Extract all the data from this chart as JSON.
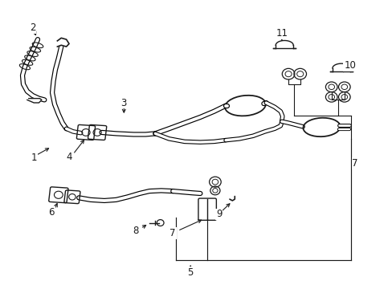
{
  "background_color": "#ffffff",
  "line_color": "#1a1a1a",
  "figsize": [
    4.89,
    3.6
  ],
  "dpi": 100,
  "labels": {
    "1": [
      0.085,
      0.47,
      0.115,
      0.505
    ],
    "2": [
      0.085,
      0.905,
      0.105,
      0.875
    ],
    "3": [
      0.315,
      0.635,
      0.305,
      0.605
    ],
    "4": [
      0.175,
      0.47,
      0.195,
      0.505
    ],
    "5": [
      0.485,
      0.055,
      0.485,
      0.09
    ],
    "6": [
      0.135,
      0.27,
      0.155,
      0.305
    ],
    "7a": [
      0.435,
      0.195,
      0.455,
      0.245
    ],
    "7b": [
      0.895,
      0.44,
      null,
      null
    ],
    "8": [
      0.345,
      0.205,
      0.375,
      0.225
    ],
    "9": [
      0.555,
      0.27,
      0.545,
      0.3
    ],
    "10": [
      0.88,
      0.77,
      0.875,
      0.74
    ],
    "11": [
      0.715,
      0.875,
      0.715,
      0.845
    ]
  }
}
